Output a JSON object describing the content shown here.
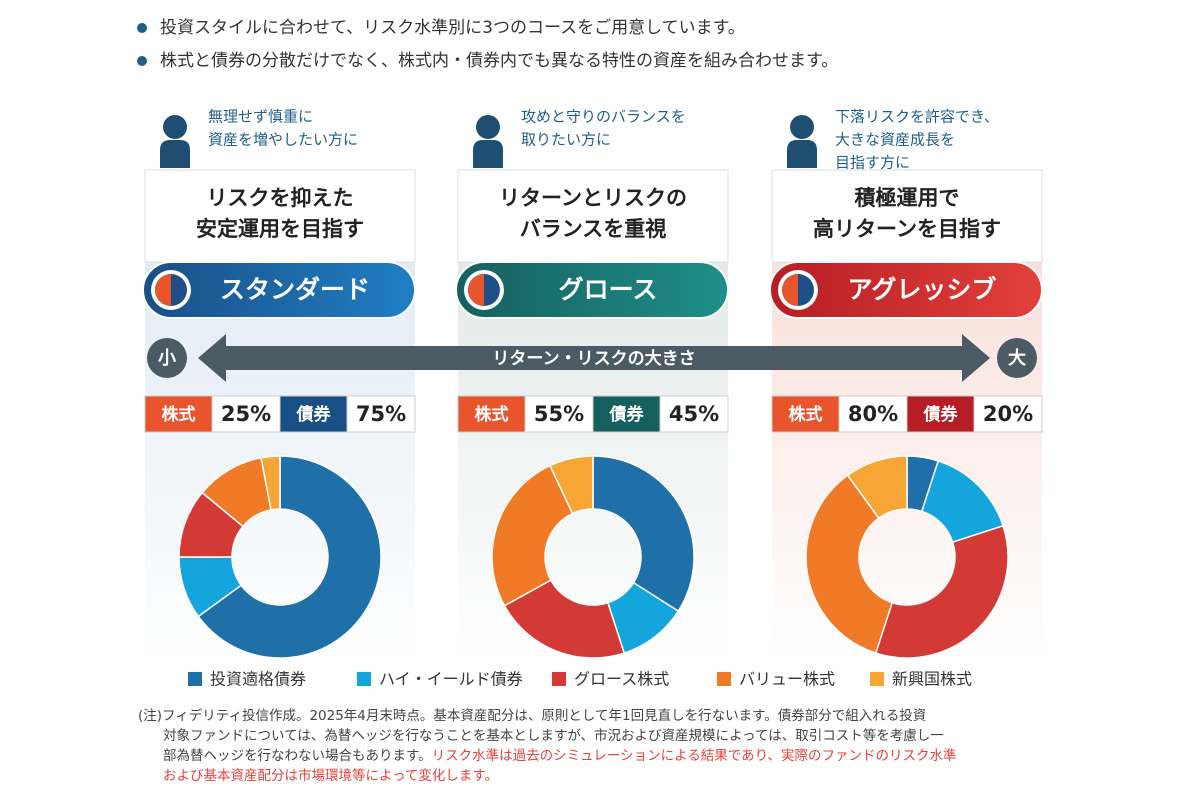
{
  "bullets": [
    "投資スタイルに合わせて、リスク水準別に3つのコースをご用意しています。",
    "株式と債券の分散だけでなく、株式内・債券内でも異なる特性の資産を組み合わせます。"
  ],
  "courses": [
    {
      "audience": [
        "無理せず慎重に",
        "資産を増やしたい方に"
      ],
      "title": [
        "リスクを抑えた",
        "安定運用を目指す"
      ],
      "name": "スタンダード",
      "stock_label": "株式",
      "stock_pct": "25%",
      "bond_label": "債券",
      "bond_pct": "75%"
    },
    {
      "audience": [
        "攻めと守りのバランスを",
        "取りたい方に"
      ],
      "title": [
        "リターンとリスクの",
        "バランスを重視"
      ],
      "name": "グロース",
      "stock_label": "株式",
      "stock_pct": "55%",
      "bond_label": "債券",
      "bond_pct": "45%"
    },
    {
      "audience": [
        "下落リスクを許容でき、",
        "大きな資産成長を",
        "目指す方に"
      ],
      "title": [
        "積極運用で",
        "高リターンを目指す"
      ],
      "name": "アグレッシブ",
      "stock_label": "株式",
      "stock_pct": "80%",
      "bond_label": "債券",
      "bond_pct": "20%"
    }
  ],
  "arrow": {
    "label": "リターン・リスクの大きさ",
    "small": "小",
    "large": "大"
  },
  "chart_data": [
    {
      "type": "pie",
      "donut": true,
      "categories": [
        "投資適格債券",
        "ハイ・イールド債券",
        "グロース株式",
        "バリュー株式",
        "新興国株式"
      ],
      "colors": [
        "#1f6fa8",
        "#14a5dc",
        "#d33a36",
        "#f07a26",
        "#f7a535"
      ],
      "values": [
        65,
        10,
        11,
        11,
        3
      ]
    },
    {
      "type": "pie",
      "donut": true,
      "categories": [
        "投資適格債券",
        "ハイ・イールド債券",
        "グロース株式",
        "バリュー株式",
        "新興国株式"
      ],
      "colors": [
        "#1f6fa8",
        "#14a5dc",
        "#d33a36",
        "#f07a26",
        "#f7a535"
      ],
      "values": [
        34,
        11,
        22,
        26,
        7
      ]
    },
    {
      "type": "pie",
      "donut": true,
      "categories": [
        "投資適格債券",
        "ハイ・イールド債券",
        "グロース株式",
        "バリュー株式",
        "新興国株式"
      ],
      "colors": [
        "#1f6fa8",
        "#14a5dc",
        "#d33a36",
        "#f07a26",
        "#f7a535"
      ],
      "values": [
        5,
        15,
        35,
        35,
        10
      ]
    }
  ],
  "note": {
    "lines": [
      "(注)フィデリティ投信作成。2025年4月末時点。基本資産配分は、原則として年1回見直しを行ないます。債券部分で組入れる投資",
      "対象ファンドについては、為替ヘッジを行なうことを基本としますが、市況および資産規模によっては、取引コスト等を考慮し一",
      "部為替ヘッジを行なわない場合もあります。"
    ],
    "highlight": [
      "リスク水準は過去のシミュレーションによる結果であり、実際のファンドのリスク水準",
      "および基本資産配分は市場環境等によって変化します。"
    ]
  }
}
